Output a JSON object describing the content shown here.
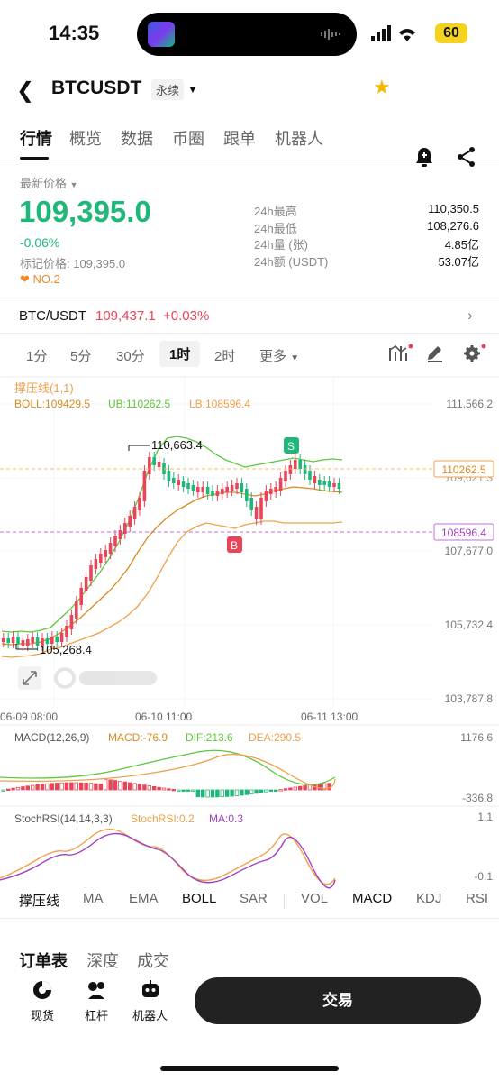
{
  "status": {
    "time": "14:35",
    "battery": "60"
  },
  "header": {
    "pair": "BTCUSDT",
    "contract": "永续"
  },
  "tabs": [
    "行情",
    "概览",
    "数据",
    "币圈",
    "跟单",
    "机器人"
  ],
  "price": {
    "label": "最新价格",
    "last": "109,395.0",
    "change": "-0.06%",
    "mark_label": "标记价格: 109,395.0",
    "rank": "NO.2",
    "stats": [
      {
        "k": "24h最高",
        "v": "110,350.5"
      },
      {
        "k": "24h最低",
        "v": "108,276.6"
      },
      {
        "k": "24h量 (张)",
        "v": "4.85亿"
      },
      {
        "k": "24h额 (USDT)",
        "v": "53.07亿"
      }
    ]
  },
  "spot": {
    "pair": "BTC/USDT",
    "price": "109,437.1",
    "change": "+0.03%"
  },
  "intervals": [
    "1分",
    "5分",
    "30分",
    "1时",
    "2时",
    "更多"
  ],
  "chart": {
    "overlay_name": "撑压线(1,1)",
    "boll": "BOLL:109429.5",
    "ub": "UB:110262.5",
    "lb": "LB:108596.4",
    "y_ticks": [
      "111,566.2",
      "109,621.3",
      "107,677.0",
      "105,732.4",
      "103,787.8"
    ],
    "ub_tag": "110262.5",
    "lb_tag": "108596.4",
    "high_label": "110,663.4",
    "low_label": "105,268.4",
    "s_marker": "S",
    "b_marker": "B",
    "x_ticks": [
      "06-09 08:00",
      "06-10 11:00",
      "06-11 13:00"
    ],
    "macd_title": "MACD(12,26,9)",
    "macd": "MACD:-76.9",
    "dif": "DIF:213.6",
    "dea": "DEA:290.5",
    "macd_top": "1176.6",
    "macd_bot": "-336.8",
    "rsi_title": "StochRSI(14,14,3,3)",
    "rsi": "StochRSI:0.2",
    "rsi_ma": "MA:0.3",
    "rsi_top": "1.1",
    "rsi_bot": "-0.1"
  },
  "indicators": [
    "撑压线",
    "MA",
    "EMA",
    "BOLL",
    "SAR",
    "VOL",
    "MACD",
    "KDJ",
    "RSI"
  ],
  "sub_tabs": [
    "订单表",
    "深度",
    "成交"
  ],
  "bottom": {
    "spot": "现货",
    "lever": "杠杆",
    "robot": "机器人",
    "trade": "交易"
  },
  "colors": {
    "up": "#1fb77a",
    "down": "#e8445a",
    "ub": "#5cc83a",
    "lb": "#f0a04b",
    "mid": "#d98c1f"
  }
}
